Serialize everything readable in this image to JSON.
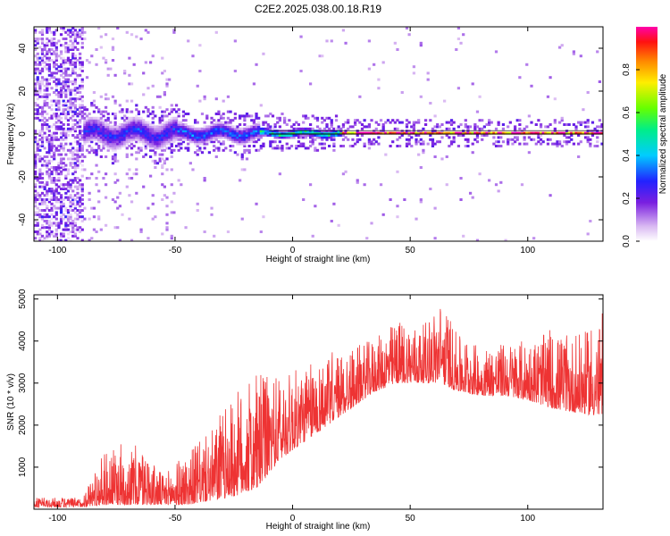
{
  "title": "C2E2.2025.038.00.18.R19",
  "colors": {
    "snr_line": "#ee3333",
    "reference_line": "#000000"
  },
  "chart_data": [
    {
      "type": "heatmap",
      "xlabel": "Height of straight line (km)",
      "ylabel": "Frequency (Hz)",
      "xlim": [
        -110,
        132
      ],
      "ylim": [
        -50,
        50
      ],
      "x_ticks": [
        -100,
        -50,
        0,
        50,
        100
      ],
      "y_ticks": [
        -40,
        -20,
        0,
        20,
        40
      ],
      "grid": false,
      "colormap": "rainbow (white → violet → blue → cyan → green → yellow → orange → red → magenta)",
      "colorbar": {
        "label": "Normalized spectral amplitude",
        "range": [
          0,
          1
        ],
        "ticks": [
          0.0,
          0.2,
          0.4,
          0.6,
          0.8
        ]
      },
      "bands": [
        {
          "x_from": -110,
          "x_to": -90,
          "freq_half_width": 50,
          "amplitude": 0.15
        },
        {
          "x_from": -90,
          "x_to": -50,
          "freq_half_width": 6,
          "amplitude": 0.3
        },
        {
          "x_from": -50,
          "x_to": -15,
          "freq_half_width": 4,
          "amplitude": 0.35
        },
        {
          "x_from": -15,
          "x_to": 20,
          "freq_half_width": 2,
          "amplitude": 0.6
        },
        {
          "x_from": 20,
          "x_to": 132,
          "freq_half_width": 1,
          "amplitude": 0.95
        }
      ]
    },
    {
      "type": "line",
      "xlabel": "Height of straight line (km)",
      "ylabel": "SNR (10 * v/v)",
      "xlim": [
        -110,
        132
      ],
      "ylim": [
        0,
        5100
      ],
      "x_ticks": [
        -100,
        -50,
        0,
        50,
        100
      ],
      "y_ticks": [
        1000,
        2000,
        3000,
        4000,
        5000
      ],
      "grid": false,
      "series": [
        {
          "name": "",
          "envelope": [
            {
              "x": -110,
              "low": 50,
              "high": 300
            },
            {
              "x": -90,
              "low": 50,
              "high": 300
            },
            {
              "x": -80,
              "low": 100,
              "high": 1500
            },
            {
              "x": -65,
              "low": 100,
              "high": 1700
            },
            {
              "x": -55,
              "low": 100,
              "high": 900
            },
            {
              "x": -45,
              "low": 100,
              "high": 1500
            },
            {
              "x": -35,
              "low": 200,
              "high": 2000
            },
            {
              "x": -25,
              "low": 300,
              "high": 3000
            },
            {
              "x": -15,
              "low": 500,
              "high": 3500
            },
            {
              "x": -5,
              "low": 1200,
              "high": 3400
            },
            {
              "x": 5,
              "low": 1600,
              "high": 3600
            },
            {
              "x": 15,
              "low": 2000,
              "high": 3800
            },
            {
              "x": 25,
              "low": 2400,
              "high": 4000
            },
            {
              "x": 35,
              "low": 2800,
              "high": 4200
            },
            {
              "x": 45,
              "low": 3000,
              "high": 4700
            },
            {
              "x": 55,
              "low": 3000,
              "high": 4500
            },
            {
              "x": 63,
              "low": 3000,
              "high": 5200
            },
            {
              "x": 70,
              "low": 2800,
              "high": 4300
            },
            {
              "x": 80,
              "low": 2700,
              "high": 4000
            },
            {
              "x": 90,
              "low": 2700,
              "high": 4100
            },
            {
              "x": 100,
              "low": 2600,
              "high": 4200
            },
            {
              "x": 110,
              "low": 2400,
              "high": 4400
            },
            {
              "x": 120,
              "low": 2300,
              "high": 4300
            },
            {
              "x": 132,
              "low": 2200,
              "high": 4700
            }
          ]
        }
      ]
    }
  ]
}
